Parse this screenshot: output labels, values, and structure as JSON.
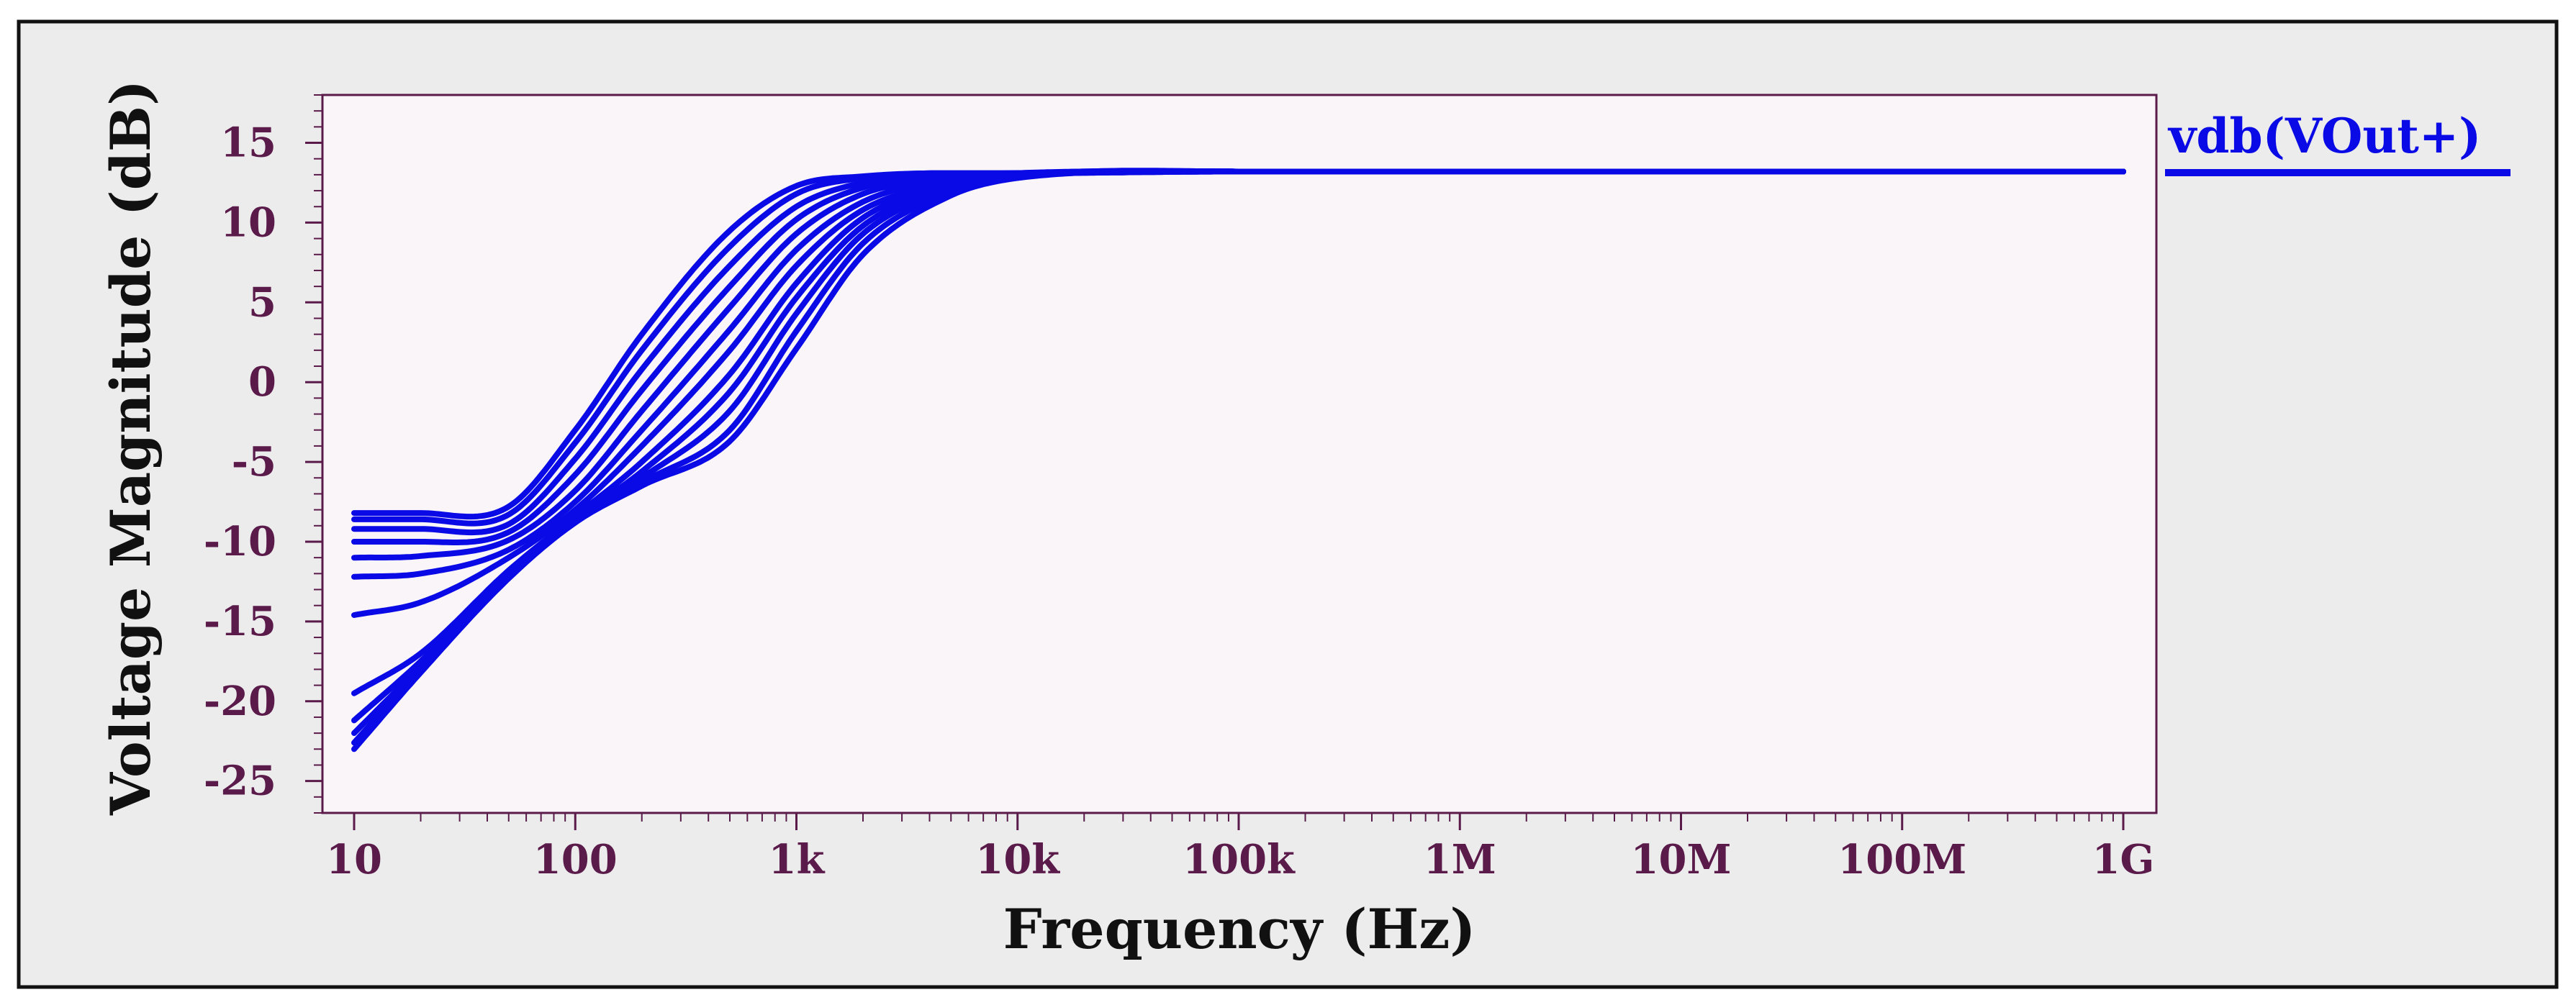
{
  "chart_data": {
    "type": "line",
    "title": "",
    "xlabel": "Frequency (Hz)",
    "ylabel": "Voltage Magnitude (dB)",
    "xscale": "log",
    "xlim": [
      10,
      1000000000
    ],
    "ylim": [
      -27,
      18
    ],
    "x_ticks": [
      {
        "value": 10,
        "label": "10"
      },
      {
        "value": 100,
        "label": "100"
      },
      {
        "value": 1000,
        "label": "1k"
      },
      {
        "value": 10000,
        "label": "10k"
      },
      {
        "value": 100000,
        "label": "100k"
      },
      {
        "value": 1000000,
        "label": "1M"
      },
      {
        "value": 10000000,
        "label": "10M"
      },
      {
        "value": 100000000,
        "label": "100M"
      },
      {
        "value": 1000000000,
        "label": "1G"
      }
    ],
    "y_ticks": [
      {
        "value": 15,
        "label": "15"
      },
      {
        "value": 10,
        "label": "10"
      },
      {
        "value": 5,
        "label": "5"
      },
      {
        "value": 0,
        "label": "0"
      },
      {
        "value": -5,
        "label": "-5"
      },
      {
        "value": -10,
        "label": "-10"
      },
      {
        "value": -15,
        "label": "-15"
      },
      {
        "value": -20,
        "label": "-20"
      },
      {
        "value": -25,
        "label": "-25"
      }
    ],
    "legend": {
      "label": "vdb(VOut+)",
      "position": "top-right",
      "color": "#0a0ae6"
    },
    "grid": false,
    "colors": {
      "line": "#0a0ae6",
      "plot_bg": "#faf5f8",
      "frame_bg": "#ececec",
      "axis": "#5a1a4a",
      "tick_label": "#5a1a4a",
      "axis_title": "#111111",
      "border": "#111111"
    },
    "series": [
      {
        "name": "vdb(VOut+) run 1",
        "x": [
          10,
          20,
          50,
          100,
          200,
          500,
          1000,
          2000,
          5000,
          10000,
          100000,
          1000000000
        ],
        "y": [
          -8.2,
          -8.2,
          -7.8,
          -3.0,
          3.0,
          9.5,
          12.3,
          12.9,
          13.1,
          13.1,
          13.2,
          13.2
        ]
      },
      {
        "name": "vdb(VOut+) run 2",
        "x": [
          10,
          20,
          50,
          100,
          200,
          500,
          1000,
          2000,
          5000,
          10000,
          100000,
          1000000000
        ],
        "y": [
          -8.6,
          -8.6,
          -8.3,
          -3.8,
          2.0,
          8.5,
          11.8,
          12.8,
          13.1,
          13.1,
          13.2,
          13.2
        ]
      },
      {
        "name": "vdb(VOut+) run 3",
        "x": [
          10,
          20,
          50,
          100,
          200,
          500,
          1000,
          2000,
          5000,
          10000,
          100000,
          1000000000
        ],
        "y": [
          -9.2,
          -9.2,
          -8.9,
          -4.8,
          0.8,
          7.3,
          11.0,
          12.5,
          13.0,
          13.1,
          13.2,
          13.2
        ]
      },
      {
        "name": "vdb(VOut+) run 4",
        "x": [
          10,
          20,
          50,
          100,
          200,
          500,
          1000,
          2000,
          5000,
          10000,
          100000,
          1000000000
        ],
        "y": [
          -10.0,
          -10.0,
          -9.4,
          -5.8,
          -0.5,
          6.0,
          10.2,
          12.2,
          12.9,
          13.1,
          13.2,
          13.2
        ]
      },
      {
        "name": "vdb(VOut+) run 5",
        "x": [
          10,
          20,
          50,
          100,
          200,
          500,
          1000,
          2000,
          5000,
          10000,
          100000,
          1000000000
        ],
        "y": [
          -11.0,
          -10.9,
          -9.9,
          -6.8,
          -1.8,
          4.7,
          9.3,
          11.8,
          12.8,
          13.1,
          13.2,
          13.2
        ]
      },
      {
        "name": "vdb(VOut+) run 6",
        "x": [
          10,
          20,
          50,
          100,
          200,
          500,
          1000,
          2000,
          5000,
          10000,
          100000,
          1000000000
        ],
        "y": [
          -12.2,
          -12.0,
          -10.5,
          -7.5,
          -3.0,
          3.3,
          8.3,
          11.3,
          12.7,
          13.0,
          13.2,
          13.2
        ]
      },
      {
        "name": "vdb(VOut+) run 7",
        "x": [
          10,
          20,
          50,
          100,
          200,
          500,
          1000,
          2000,
          5000,
          10000,
          100000,
          1000000000
        ],
        "y": [
          -14.6,
          -13.8,
          -11.0,
          -8.0,
          -4.0,
          2.0,
          7.3,
          10.8,
          12.5,
          13.0,
          13.2,
          13.2
        ]
      },
      {
        "name": "vdb(VOut+) run 8",
        "x": [
          10,
          20,
          50,
          100,
          200,
          500,
          1000,
          2000,
          5000,
          10000,
          100000,
          1000000000
        ],
        "y": [
          -19.5,
          -17.0,
          -11.8,
          -8.4,
          -5.0,
          0.5,
          6.2,
          10.3,
          12.4,
          13.0,
          13.2,
          13.2
        ]
      },
      {
        "name": "vdb(VOut+) run 9",
        "x": [
          10,
          20,
          50,
          100,
          200,
          500,
          1000,
          2000,
          5000,
          10000,
          100000,
          1000000000
        ],
        "y": [
          -21.2,
          -17.5,
          -12.0,
          -8.6,
          -5.6,
          -0.6,
          5.3,
          9.8,
          12.3,
          12.9,
          13.2,
          13.2
        ]
      },
      {
        "name": "vdb(VOut+) run 10",
        "x": [
          10,
          20,
          50,
          100,
          200,
          500,
          1000,
          2000,
          5000,
          10000,
          100000,
          1000000000
        ],
        "y": [
          -22.0,
          -17.8,
          -12.1,
          -8.7,
          -6.0,
          -1.8,
          4.3,
          9.3,
          12.1,
          12.9,
          13.2,
          13.2
        ]
      },
      {
        "name": "vdb(VOut+) run 11",
        "x": [
          10,
          20,
          50,
          100,
          200,
          500,
          1000,
          2000,
          5000,
          10000,
          100000,
          1000000000
        ],
        "y": [
          -22.6,
          -18.0,
          -12.2,
          -8.8,
          -6.3,
          -3.0,
          3.2,
          8.7,
          11.9,
          12.8,
          13.2,
          13.2
        ]
      },
      {
        "name": "vdb(VOut+) run 12",
        "x": [
          10,
          20,
          50,
          100,
          200,
          500,
          1000,
          2000,
          5000,
          10000,
          100000,
          1000000000
        ],
        "y": [
          -23.0,
          -18.2,
          -12.3,
          -8.8,
          -6.5,
          -3.7,
          2.1,
          8.0,
          11.7,
          12.8,
          13.2,
          13.2
        ]
      }
    ]
  }
}
